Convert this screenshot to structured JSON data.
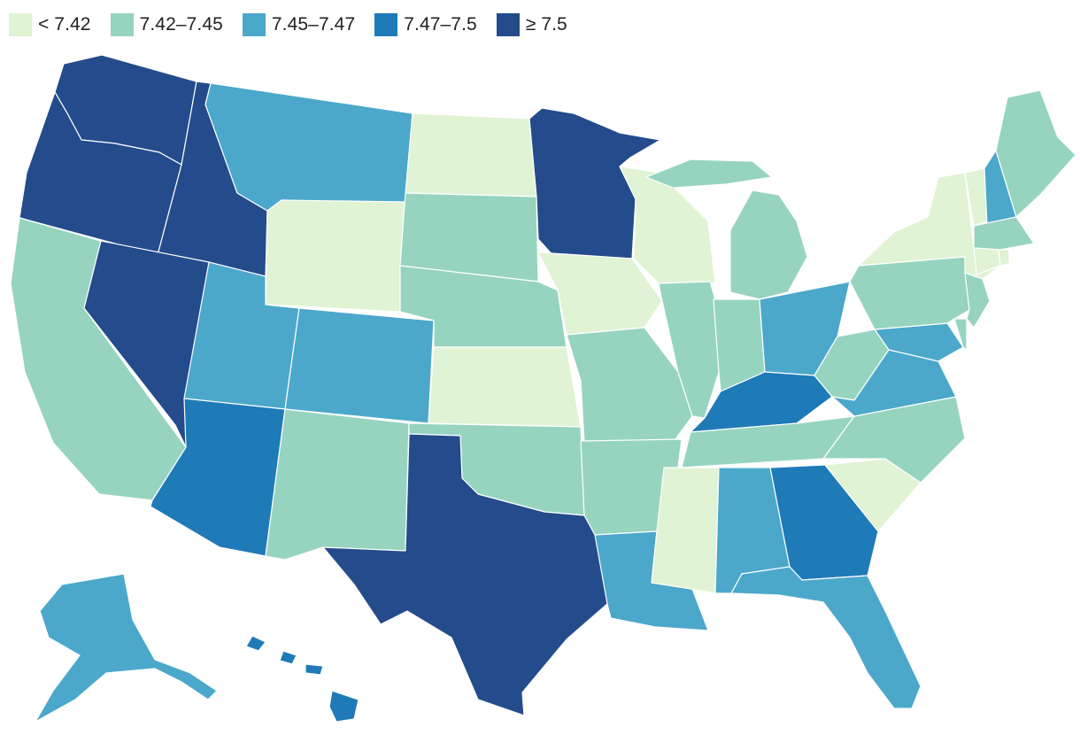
{
  "legend": [
    {
      "label": "< 7.42",
      "color": "#e0f3d4"
    },
    {
      "label": "7.42–7.45",
      "color": "#96d4c0"
    },
    {
      "label": "7.45–7.47",
      "color": "#4ba8cb"
    },
    {
      "label": "7.47–7.5",
      "color": "#1f7ab8"
    },
    {
      "label": "≥ 7.5",
      "color": "#244b8b"
    }
  ],
  "states": {
    "WA": 4,
    "OR": 4,
    "ID": 4,
    "NV": 4,
    "MN": 4,
    "TX": 4,
    "AZ": 3,
    "KY": 3,
    "GA": 3,
    "HI": 3,
    "MT": 2,
    "UT": 2,
    "CO": 2,
    "OH": 2,
    "VA": 2,
    "MD": 2,
    "NH": 2,
    "AL": 2,
    "LA": 2,
    "FL": 2,
    "AK": 2,
    "CA": 1,
    "NM": 1,
    "SD": 1,
    "NE": 1,
    "OK": 1,
    "MO": 1,
    "AR": 1,
    "IL": 1,
    "IN": 1,
    "MI": 1,
    "WV": 1,
    "PA": 1,
    "NJ": 1,
    "ME": 1,
    "MA": 1,
    "TN": 1,
    "NC": 1,
    "DE": 1,
    "WY": 0,
    "ND": 0,
    "KS": 0,
    "IA": 0,
    "WI": 0,
    "MS": 0,
    "SC": 0,
    "NY": 0,
    "VT": 0,
    "CT": 0,
    "RI": 0
  }
}
